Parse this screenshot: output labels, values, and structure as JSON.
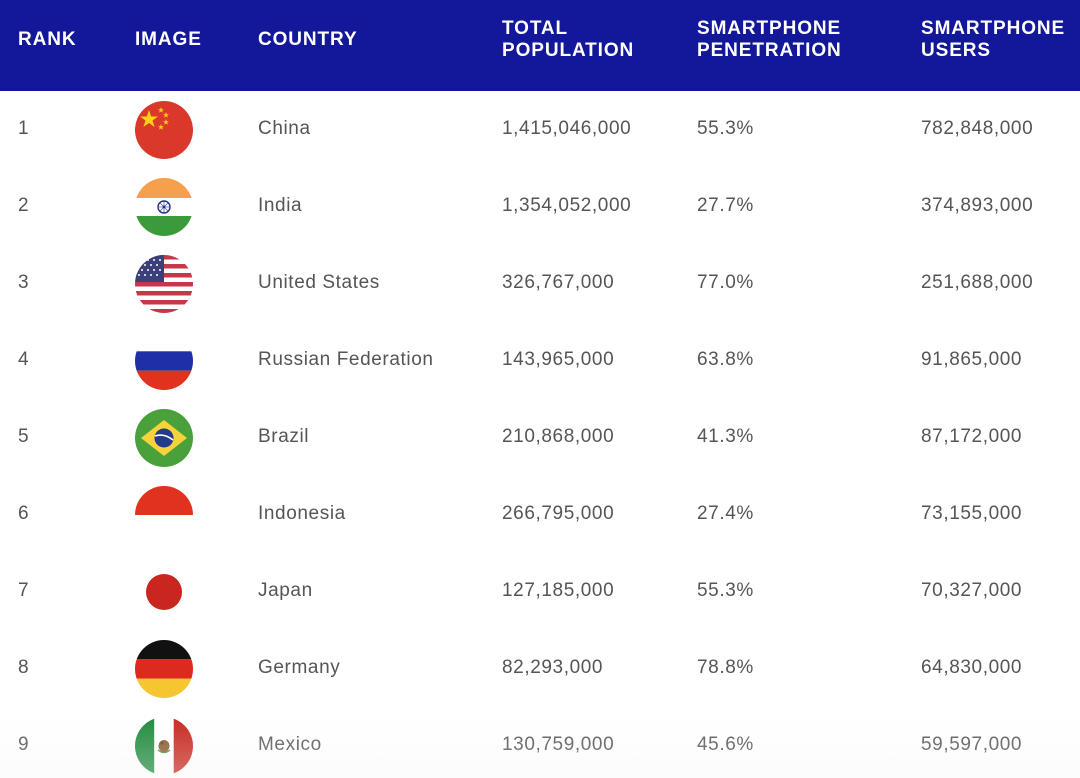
{
  "header": {
    "rank": "RANK",
    "image": "IMAGE",
    "country": "COUNTRY",
    "population_line1": "TOTAL",
    "population_line2": "POPULATION",
    "penetration_line1": "SMARTPHONE",
    "penetration_line2": "PENETRATION",
    "users_line1": "SMARTPHONE",
    "users_line2": "USERS"
  },
  "colors": {
    "header_background": "#13179a",
    "header_text": "#ffffff",
    "row_text": "#555555",
    "row_divider": "#dcdcdc"
  },
  "rows": [
    {
      "rank": "1",
      "flag_icon": "china-flag-icon",
      "country": "China",
      "population": "1,415,046,000",
      "penetration": "55.3%",
      "users": "782,848,000"
    },
    {
      "rank": "2",
      "flag_icon": "india-flag-icon",
      "country": "India",
      "population": "1,354,052,000",
      "penetration": "27.7%",
      "users": "374,893,000"
    },
    {
      "rank": "3",
      "flag_icon": "united-states-flag-icon",
      "country": "United States",
      "population": "326,767,000",
      "penetration": "77.0%",
      "users": "251,688,000"
    },
    {
      "rank": "4",
      "flag_icon": "russia-flag-icon",
      "country": "Russian Federation",
      "population": "143,965,000",
      "penetration": "63.8%",
      "users": "91,865,000"
    },
    {
      "rank": "5",
      "flag_icon": "brazil-flag-icon",
      "country": "Brazil",
      "population": "210,868,000",
      "penetration": "41.3%",
      "users": "87,172,000"
    },
    {
      "rank": "6",
      "flag_icon": "indonesia-flag-icon",
      "country": "Indonesia",
      "population": "266,795,000",
      "penetration": "27.4%",
      "users": "73,155,000"
    },
    {
      "rank": "7",
      "flag_icon": "japan-flag-icon",
      "country": "Japan",
      "population": "127,185,000",
      "penetration": "55.3%",
      "users": "70,327,000"
    },
    {
      "rank": "8",
      "flag_icon": "germany-flag-icon",
      "country": "Germany",
      "population": "82,293,000",
      "penetration": "78.8%",
      "users": "64,830,000"
    },
    {
      "rank": "9",
      "flag_icon": "mexico-flag-icon",
      "country": "Mexico",
      "population": "130,759,000",
      "penetration": "45.6%",
      "users": "59,597,000"
    }
  ]
}
